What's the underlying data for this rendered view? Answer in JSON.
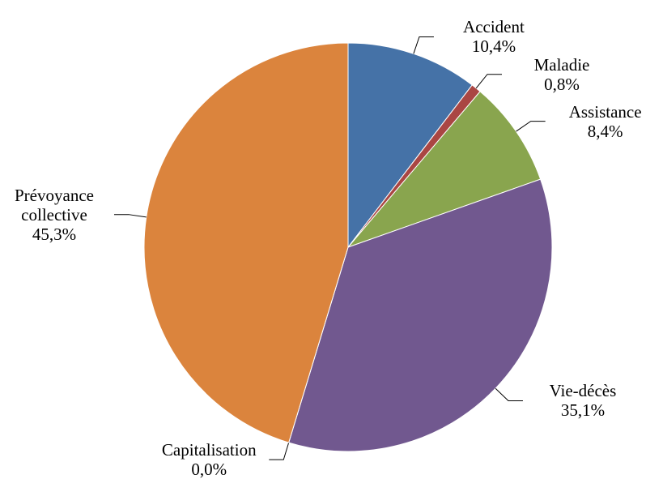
{
  "chart_data": {
    "type": "pie",
    "categories": [
      "Accident",
      "Maladie",
      "Assistance",
      "Vie-décès",
      "Capitalisation",
      "Prévoyance collective"
    ],
    "values": [
      10.4,
      0.8,
      8.4,
      35.1,
      0.0,
      45.3
    ],
    "value_labels": [
      "10,4%",
      "0,8%",
      "8,4%",
      "35,1%",
      "0,0%",
      "45,3%"
    ],
    "colors": [
      "#4572a7",
      "#aa4643",
      "#89a54e",
      "#71588f",
      "#4198af",
      "#db843d"
    ]
  }
}
